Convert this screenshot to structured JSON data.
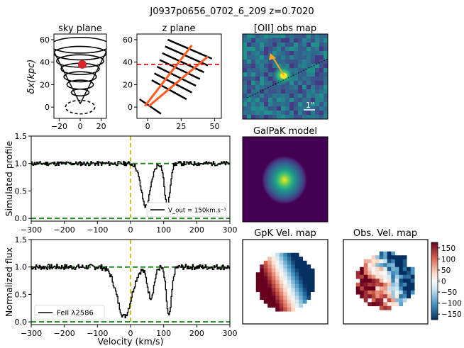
{
  "suptitle": "J0937p0656_0702_6_209 z=0.7020",
  "colors": {
    "black": "#000000",
    "red": "#d62728",
    "orange": "#ff5a1f",
    "green": "#1f8a1f",
    "yellow": "#c8c814",
    "arrow": "#f5a623"
  },
  "chart_data": [
    {
      "id": "sky",
      "type": "diagram",
      "title": "sky plane",
      "ylabel": "δx(kpc)",
      "xlim": [
        -25,
        25
      ],
      "ylim": [
        -10,
        65
      ],
      "xticks": [
        -20,
        0,
        20
      ],
      "yticks": [
        0,
        20,
        40,
        60
      ],
      "cone_ellipses": [
        {
          "cx": 0,
          "cy": 55,
          "rx": 20,
          "ry": 7
        },
        {
          "cx": 0,
          "cy": 48,
          "rx": 18,
          "ry": 6
        },
        {
          "cx": 0,
          "cy": 41,
          "rx": 16,
          "ry": 5.5
        },
        {
          "cx": 0,
          "cy": 34,
          "rx": 13,
          "ry": 5
        },
        {
          "cx": 0,
          "cy": 27,
          "rx": 11,
          "ry": 4.5
        },
        {
          "cx": 0,
          "cy": 20,
          "rx": 9,
          "ry": 4
        },
        {
          "cx": 0,
          "cy": 13,
          "rx": 6,
          "ry": 3
        }
      ],
      "galaxy_ellipse": {
        "cx": 0,
        "cy": 0,
        "rx": 10,
        "ry": 6
      },
      "sightline": {
        "x": 2,
        "y": 38
      }
    },
    {
      "id": "zplane",
      "type": "diagram",
      "title": "z plane",
      "xlim": [
        -8,
        55
      ],
      "ylim": [
        -10,
        65
      ],
      "xticks": [
        0,
        25,
        50
      ],
      "yticks": [
        0,
        20,
        40,
        60
      ],
      "sightline_y": 38,
      "disk": [
        [
          -6,
          7
        ],
        [
          10,
          -6
        ]
      ],
      "slabs": [
        [
          [
            15,
            60
          ],
          [
            48,
            43
          ]
        ],
        [
          [
            13,
            54
          ],
          [
            45,
            37
          ]
        ],
        [
          [
            11,
            48
          ],
          [
            42,
            31
          ]
        ],
        [
          [
            9,
            42
          ],
          [
            39,
            25
          ]
        ],
        [
          [
            7,
            36
          ],
          [
            36,
            19
          ]
        ],
        [
          [
            5,
            30
          ],
          [
            33,
            13
          ]
        ],
        [
          [
            3,
            24
          ],
          [
            29,
            7
          ]
        ]
      ],
      "cone_axes": [
        [
          [
            -2,
            1
          ],
          [
            33,
            55
          ]
        ],
        [
          [
            1,
            1
          ],
          [
            45,
            45
          ]
        ]
      ]
    },
    {
      "id": "prof",
      "type": "line",
      "ylabel": "Simulated profile",
      "xlim": [
        -300,
        300
      ],
      "ylim": [
        -0.05,
        1.5
      ],
      "xticks": [
        -300,
        -200,
        -100,
        0,
        100,
        200,
        300
      ],
      "yticks": [
        0.0,
        0.5,
        1.0,
        1.5
      ],
      "continuum": 1.0,
      "zero": 0.0,
      "v0": 0,
      "absorptions": [
        {
          "center": 45,
          "depth": 0.78,
          "width": 14
        },
        {
          "center": 110,
          "depth": 0.8,
          "width": 8
        }
      ],
      "noise": 0.04,
      "seed": 11,
      "legend": "V_out = 150km.s⁻¹"
    },
    {
      "id": "flux",
      "type": "line",
      "ylabel": "Normalized flux",
      "xlabel": "Velocity (km/s)",
      "xlim": [
        -300,
        300
      ],
      "ylim": [
        -0.05,
        1.5
      ],
      "xticks": [
        -300,
        -200,
        -100,
        0,
        100,
        200,
        300
      ],
      "yticks": [
        0.0,
        0.5,
        1.0,
        1.5
      ],
      "continuum": 1.0,
      "zero": 0.0,
      "v0": 0,
      "absorptions": [
        {
          "center": -20,
          "depth": 0.9,
          "width": 22
        },
        {
          "center": 60,
          "depth": 0.55,
          "width": 10
        },
        {
          "center": 115,
          "depth": 0.9,
          "width": 8
        }
      ],
      "noise": 0.05,
      "seed": 7,
      "legend": "FeII λ2586"
    },
    {
      "id": "oii",
      "type": "heatmap",
      "title": "[OII] obs map",
      "scalebar_label": "1\""
    },
    {
      "id": "galpak",
      "type": "heatmap",
      "title": "GalPaK model"
    },
    {
      "id": "gpkvel",
      "type": "heatmap",
      "title": "GpK Vel. map"
    },
    {
      "id": "obsvel",
      "type": "heatmap",
      "title": "Obs. Vel. map",
      "colorbar_ticks": [
        150,
        100,
        50,
        0,
        -50,
        -100,
        -150
      ],
      "vmin": -175,
      "vmax": 175
    }
  ]
}
